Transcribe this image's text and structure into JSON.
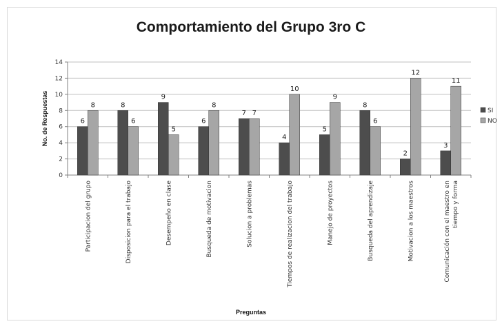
{
  "chart_data": {
    "type": "bar",
    "title": "Comportamiento del Grupo 3ro C",
    "xlabel": "Preguntas",
    "ylabel": "No. de Respuestas",
    "ylim": [
      0,
      14
    ],
    "yticks": [
      0,
      2,
      4,
      6,
      8,
      10,
      12,
      14
    ],
    "grid": true,
    "legend_position": "right",
    "categories": [
      "Participacion del grupo",
      "Disposicion para el trabajo",
      "Desempeño en clase",
      "Busqueda de motivacion",
      "Solucion a problemas",
      "Tiempos de realizacion del trabajo",
      "Manejo de proyectos",
      "Busqueda del aprendizaje",
      "Motivacion a los maestros",
      "Comunicación con el maestro en tiempo y forma"
    ],
    "series": [
      {
        "name": "SI",
        "color": "#4d4d4d",
        "values": [
          6,
          8,
          9,
          6,
          7,
          4,
          5,
          8,
          2,
          3
        ]
      },
      {
        "name": "NO",
        "color": "#a6a6a6",
        "values": [
          8,
          6,
          5,
          8,
          7,
          10,
          9,
          6,
          12,
          11
        ]
      }
    ]
  }
}
